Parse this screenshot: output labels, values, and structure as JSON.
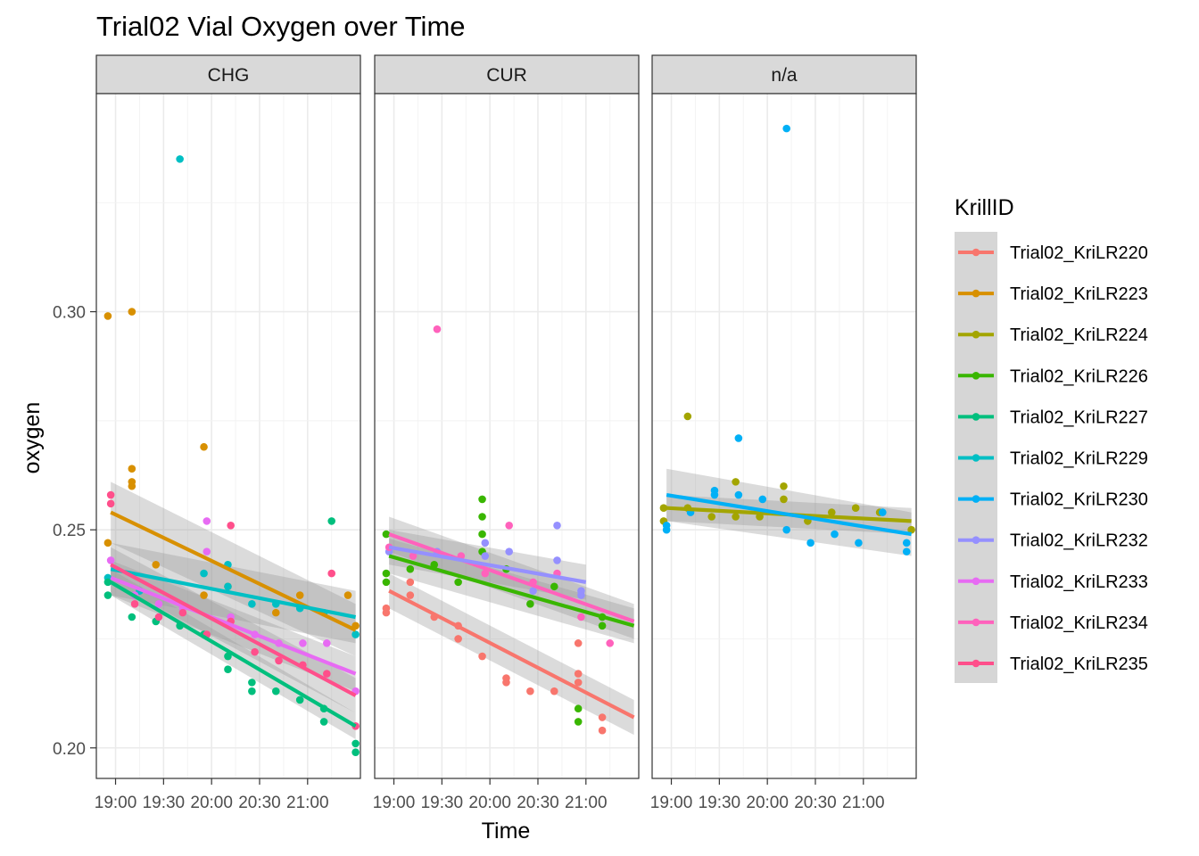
{
  "chart_data": {
    "type": "scatter",
    "title": "Trial02 Vial Oxygen over Time",
    "xlabel": "Time",
    "ylabel": "oxygen",
    "facets": [
      "CHG",
      "CUR",
      "n/a"
    ],
    "xlim_hours": [
      18.8,
      21.55
    ],
    "ylim": [
      0.193,
      0.35
    ],
    "x_ticks": [
      {
        "value": 19.0,
        "label": "19:00"
      },
      {
        "value": 19.5,
        "label": "19:30"
      },
      {
        "value": 20.0,
        "label": "20:00"
      },
      {
        "value": 20.5,
        "label": "20:30"
      },
      {
        "value": 21.0,
        "label": "21:00"
      }
    ],
    "y_ticks": [
      {
        "value": 0.2,
        "label": "0.20"
      },
      {
        "value": 0.25,
        "label": "0.25"
      },
      {
        "value": 0.3,
        "label": "0.30"
      }
    ],
    "legend_title": "KrillID",
    "legend_position": "right",
    "grid": true,
    "smooth": "linear fit with confidence band",
    "series": [
      {
        "name": "Trial02_KriLR220",
        "color": "#F8766D"
      },
      {
        "name": "Trial02_KriLR223",
        "color": "#D89000"
      },
      {
        "name": "Trial02_KriLR224",
        "color": "#A3A500"
      },
      {
        "name": "Trial02_KriLR226",
        "color": "#39B600"
      },
      {
        "name": "Trial02_KriLR227",
        "color": "#00BF7D"
      },
      {
        "name": "Trial02_KriLR229",
        "color": "#00BFC4"
      },
      {
        "name": "Trial02_KriLR230",
        "color": "#00B0F6"
      },
      {
        "name": "Trial02_KriLR232",
        "color": "#9590FF"
      },
      {
        "name": "Trial02_KriLR233",
        "color": "#E76BF3"
      },
      {
        "name": "Trial02_KriLR234",
        "color": "#FF62BC"
      },
      {
        "name": "Trial02_KriLR235",
        "color": "#FF4F8B"
      }
    ],
    "panels": [
      {
        "facet": "CHG",
        "fits": [
          {
            "series": "Trial02_KriLR223",
            "x": [
              18.95,
              21.5
            ],
            "y": [
              0.254,
              0.227
            ],
            "se": [
              0.007,
              0.006
            ]
          },
          {
            "series": "Trial02_KriLR229",
            "x": [
              18.95,
              21.5
            ],
            "y": [
              0.241,
              0.23
            ],
            "se": [
              0.006,
              0.006
            ]
          },
          {
            "series": "Trial02_KriLR233",
            "x": [
              18.95,
              21.5
            ],
            "y": [
              0.239,
              0.217
            ],
            "se": [
              0.004,
              0.004
            ]
          },
          {
            "series": "Trial02_KriLR235",
            "x": [
              18.95,
              21.5
            ],
            "y": [
              0.242,
              0.212
            ],
            "se": [
              0.004,
              0.004
            ]
          },
          {
            "series": "Trial02_KriLR227",
            "x": [
              18.95,
              21.5
            ],
            "y": [
              0.238,
              0.205
            ],
            "se": [
              0.003,
              0.003
            ]
          }
        ],
        "points": [
          {
            "series": "Trial02_KriLR223",
            "x": [
              18.92,
              18.92,
              19.17,
              19.17,
              19.17,
              19.17,
              19.42,
              19.92,
              19.92,
              20.17,
              20.67,
              20.92,
              21.42,
              21.5
            ],
            "y": [
              0.299,
              0.247,
              0.3,
              0.264,
              0.261,
              0.26,
              0.242,
              0.269,
              0.235,
              0.237,
              0.231,
              0.235,
              0.235,
              0.228
            ]
          },
          {
            "series": "Trial02_KriLR229",
            "x": [
              18.92,
              19.25,
              19.67,
              19.92,
              20.17,
              20.17,
              20.42,
              20.67,
              20.92,
              21.17,
              21.5
            ],
            "y": [
              0.239,
              0.236,
              0.335,
              0.24,
              0.237,
              0.242,
              0.233,
              0.233,
              0.232,
              0.231,
              0.226
            ]
          },
          {
            "series": "Trial02_KriLR227",
            "x": [
              18.92,
              18.92,
              19.17,
              19.42,
              19.67,
              19.92,
              20.17,
              20.17,
              20.42,
              20.42,
              20.67,
              20.92,
              21.17,
              21.17,
              21.25,
              21.5,
              21.5
            ],
            "y": [
              0.238,
              0.235,
              0.23,
              0.229,
              0.228,
              0.226,
              0.221,
              0.218,
              0.215,
              0.213,
              0.213,
              0.211,
              0.209,
              0.206,
              0.252,
              0.201,
              0.199
            ]
          },
          {
            "series": "Trial02_KriLR233",
            "x": [
              18.95,
              19.2,
              19.45,
              19.7,
              19.95,
              19.95,
              20.2,
              20.45,
              20.7,
              20.95,
              21.2,
              21.5
            ],
            "y": [
              0.243,
              0.235,
              0.233,
              0.232,
              0.252,
              0.245,
              0.23,
              0.226,
              0.224,
              0.224,
              0.224,
              0.213
            ]
          },
          {
            "series": "Trial02_KriLR235",
            "x": [
              18.95,
              18.95,
              19.2,
              19.45,
              19.7,
              19.95,
              20.2,
              20.2,
              20.45,
              20.7,
              20.95,
              21.2,
              21.25,
              21.5
            ],
            "y": [
              0.258,
              0.256,
              0.233,
              0.23,
              0.231,
              0.226,
              0.251,
              0.229,
              0.222,
              0.22,
              0.219,
              0.217,
              0.24,
              0.205
            ]
          }
        ]
      },
      {
        "facet": "CUR",
        "fits": [
          {
            "series": "Trial02_KriLR234",
            "x": [
              18.95,
              21.5
            ],
            "y": [
              0.249,
              0.229
            ],
            "se": [
              0.004,
              0.004
            ]
          },
          {
            "series": "Trial02_KriLR232",
            "x": [
              18.95,
              21.0
            ],
            "y": [
              0.246,
              0.238
            ],
            "se": [
              0.004,
              0.004
            ]
          },
          {
            "series": "Trial02_KriLR226",
            "x": [
              18.95,
              21.5
            ],
            "y": [
              0.244,
              0.228
            ],
            "se": [
              0.004,
              0.004
            ]
          },
          {
            "series": "Trial02_KriLR220",
            "x": [
              18.95,
              21.5
            ],
            "y": [
              0.236,
              0.207
            ],
            "se": [
              0.004,
              0.004
            ]
          }
        ],
        "points": [
          {
            "series": "Trial02_KriLR220",
            "x": [
              18.92,
              18.92,
              19.17,
              19.17,
              19.42,
              19.67,
              19.67,
              19.92,
              20.17,
              20.17,
              20.42,
              20.67,
              20.92,
              20.92,
              20.92,
              21.17,
              21.17
            ],
            "y": [
              0.232,
              0.231,
              0.238,
              0.235,
              0.23,
              0.228,
              0.225,
              0.221,
              0.216,
              0.215,
              0.213,
              0.213,
              0.224,
              0.217,
              0.215,
              0.207,
              0.204
            ]
          },
          {
            "series": "Trial02_KriLR226",
            "x": [
              18.92,
              18.92,
              18.92,
              19.17,
              19.42,
              19.67,
              19.92,
              19.92,
              19.92,
              19.92,
              20.17,
              20.42,
              20.67,
              20.92,
              20.92,
              21.17,
              21.17
            ],
            "y": [
              0.249,
              0.24,
              0.238,
              0.241,
              0.242,
              0.238,
              0.257,
              0.253,
              0.249,
              0.245,
              0.241,
              0.233,
              0.237,
              0.209,
              0.206,
              0.228,
              0.23
            ]
          },
          {
            "series": "Trial02_KriLR232",
            "x": [
              18.95,
              19.45,
              19.95,
              19.95,
              20.2,
              20.45,
              20.7,
              20.7,
              20.95,
              20.95
            ],
            "y": [
              0.245,
              0.245,
              0.247,
              0.244,
              0.245,
              0.236,
              0.251,
              0.243,
              0.236,
              0.235
            ]
          },
          {
            "series": "Trial02_KriLR234",
            "x": [
              18.95,
              19.2,
              19.45,
              19.7,
              19.95,
              20.2,
              20.45,
              20.7,
              20.95,
              21.25
            ],
            "y": [
              0.246,
              0.244,
              0.296,
              0.244,
              0.24,
              0.251,
              0.238,
              0.24,
              0.23,
              0.224
            ]
          }
        ]
      },
      {
        "facet": "n/a",
        "fits": [
          {
            "series": "Trial02_KriLR224",
            "x": [
              18.95,
              21.5
            ],
            "y": [
              0.255,
              0.252
            ],
            "se": [
              0.003,
              0.003
            ]
          },
          {
            "series": "Trial02_KriLR230",
            "x": [
              18.95,
              21.5
            ],
            "y": [
              0.258,
              0.249
            ],
            "se": [
              0.006,
              0.005
            ]
          }
        ],
        "points": [
          {
            "series": "Trial02_KriLR224",
            "x": [
              18.92,
              18.92,
              19.17,
              19.17,
              19.42,
              19.67,
              19.67,
              19.92,
              20.17,
              20.17,
              20.42,
              20.67,
              20.92,
              21.17,
              21.5
            ],
            "y": [
              0.255,
              0.252,
              0.276,
              0.255,
              0.253,
              0.261,
              0.253,
              0.253,
              0.26,
              0.257,
              0.252,
              0.254,
              0.255,
              0.254,
              0.25
            ]
          },
          {
            "series": "Trial02_KriLR230",
            "x": [
              18.95,
              18.95,
              19.2,
              19.45,
              19.45,
              19.7,
              19.7,
              19.95,
              20.2,
              20.2,
              20.45,
              20.7,
              20.95,
              21.2,
              21.45,
              21.45
            ],
            "y": [
              0.251,
              0.25,
              0.254,
              0.259,
              0.258,
              0.271,
              0.258,
              0.257,
              0.342,
              0.25,
              0.247,
              0.249,
              0.247,
              0.254,
              0.247,
              0.245
            ]
          }
        ]
      }
    ]
  }
}
